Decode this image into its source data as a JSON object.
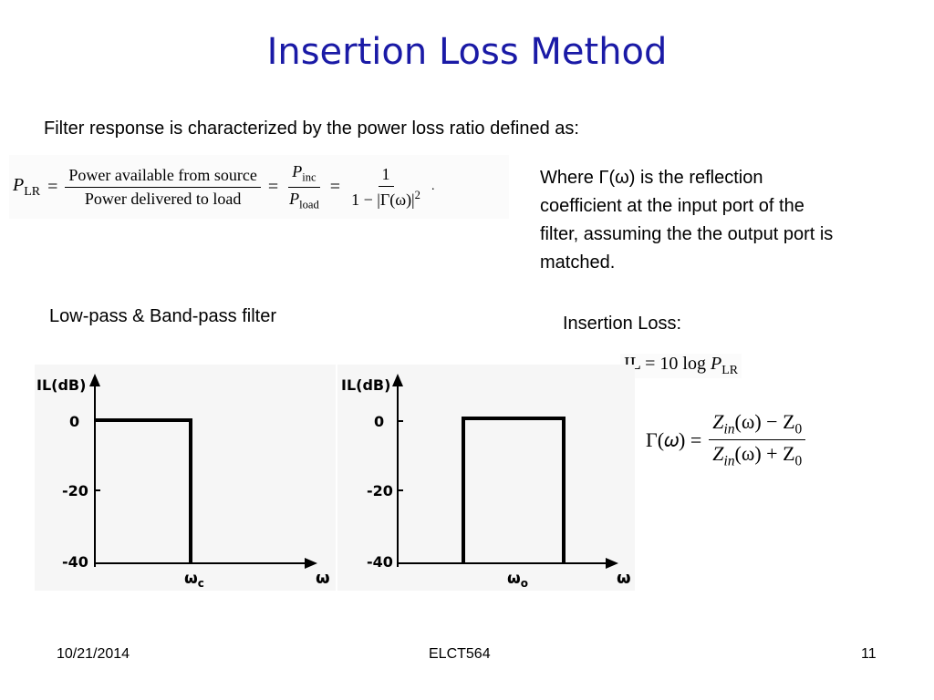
{
  "slide": {
    "title": "Insertion Loss Method",
    "intro": "Filter response is characterized by the power loss ratio defined as:",
    "where_text_lines": [
      "Where Γ(ω) is the reflection",
      "coefficient at the input port of the",
      "filter, assuming the the output port is",
      "matched."
    ],
    "filter_caption": "Low-pass & Band-pass filter",
    "il_caption": "Insertion Loss:"
  },
  "formula_plr": {
    "lhs": "P",
    "lhs_sub": "LR",
    "eq": "=",
    "frac1_num": "Power available from source",
    "frac1_den": "Power delivered to load",
    "frac2_num": "P",
    "frac2_num_sub": "inc",
    "frac2_den": "P",
    "frac2_den_sub": "load",
    "frac3_num": "1",
    "frac3_den": "1 − |Γ(ω)|",
    "frac3_den_sup": "2",
    "trailing": "."
  },
  "formula_il": {
    "text": "IL = 10 log ",
    "p": "P",
    "p_sub": "LR"
  },
  "formula_gamma": {
    "lhs": "Γ(𝜔) =",
    "num": "Z",
    "num_sub": "in",
    "num_rest": "(ω) − Z",
    "num_sub2": "0",
    "den": "Z",
    "den_sub": "in",
    "den_rest": "(ω) + Z",
    "den_sub2": "0"
  },
  "plots": {
    "ylabel": "IL(dB)",
    "yticks": [
      "0",
      "-20",
      "-40"
    ],
    "xlabel": "ω",
    "lowpass_mark": "ω",
    "lowpass_mark_sub": "c",
    "bandpass_mark": "ω",
    "bandpass_mark_sub": "o"
  },
  "chart_data": [
    {
      "type": "line",
      "title": "",
      "ylabel": "IL(dB)",
      "xlabel": "ω",
      "ylim": [
        -40,
        0
      ],
      "yticks": [
        0,
        -20,
        -40
      ],
      "series": [
        {
          "x": [
            "0",
            "ωc",
            "ωc"
          ],
          "y": [
            0,
            0,
            -40
          ]
        }
      ]
    },
    {
      "type": "line",
      "title": "",
      "ylabel": "IL(dB)",
      "xlabel": "ω",
      "ylim": [
        -40,
        0
      ],
      "yticks": [
        0,
        -20,
        -40
      ],
      "series": [
        {
          "x": [
            "ω1",
            "ω1",
            "ω2",
            "ω2"
          ],
          "y": [
            -40,
            0,
            0,
            -40
          ]
        }
      ]
    }
  ],
  "footer": {
    "date": "10/21/2014",
    "course": "ELCT564",
    "page": "11"
  },
  "colors": {
    "title": "#1a1aa6",
    "plot_background": "#f6f6f6",
    "response_line": "#000000"
  }
}
